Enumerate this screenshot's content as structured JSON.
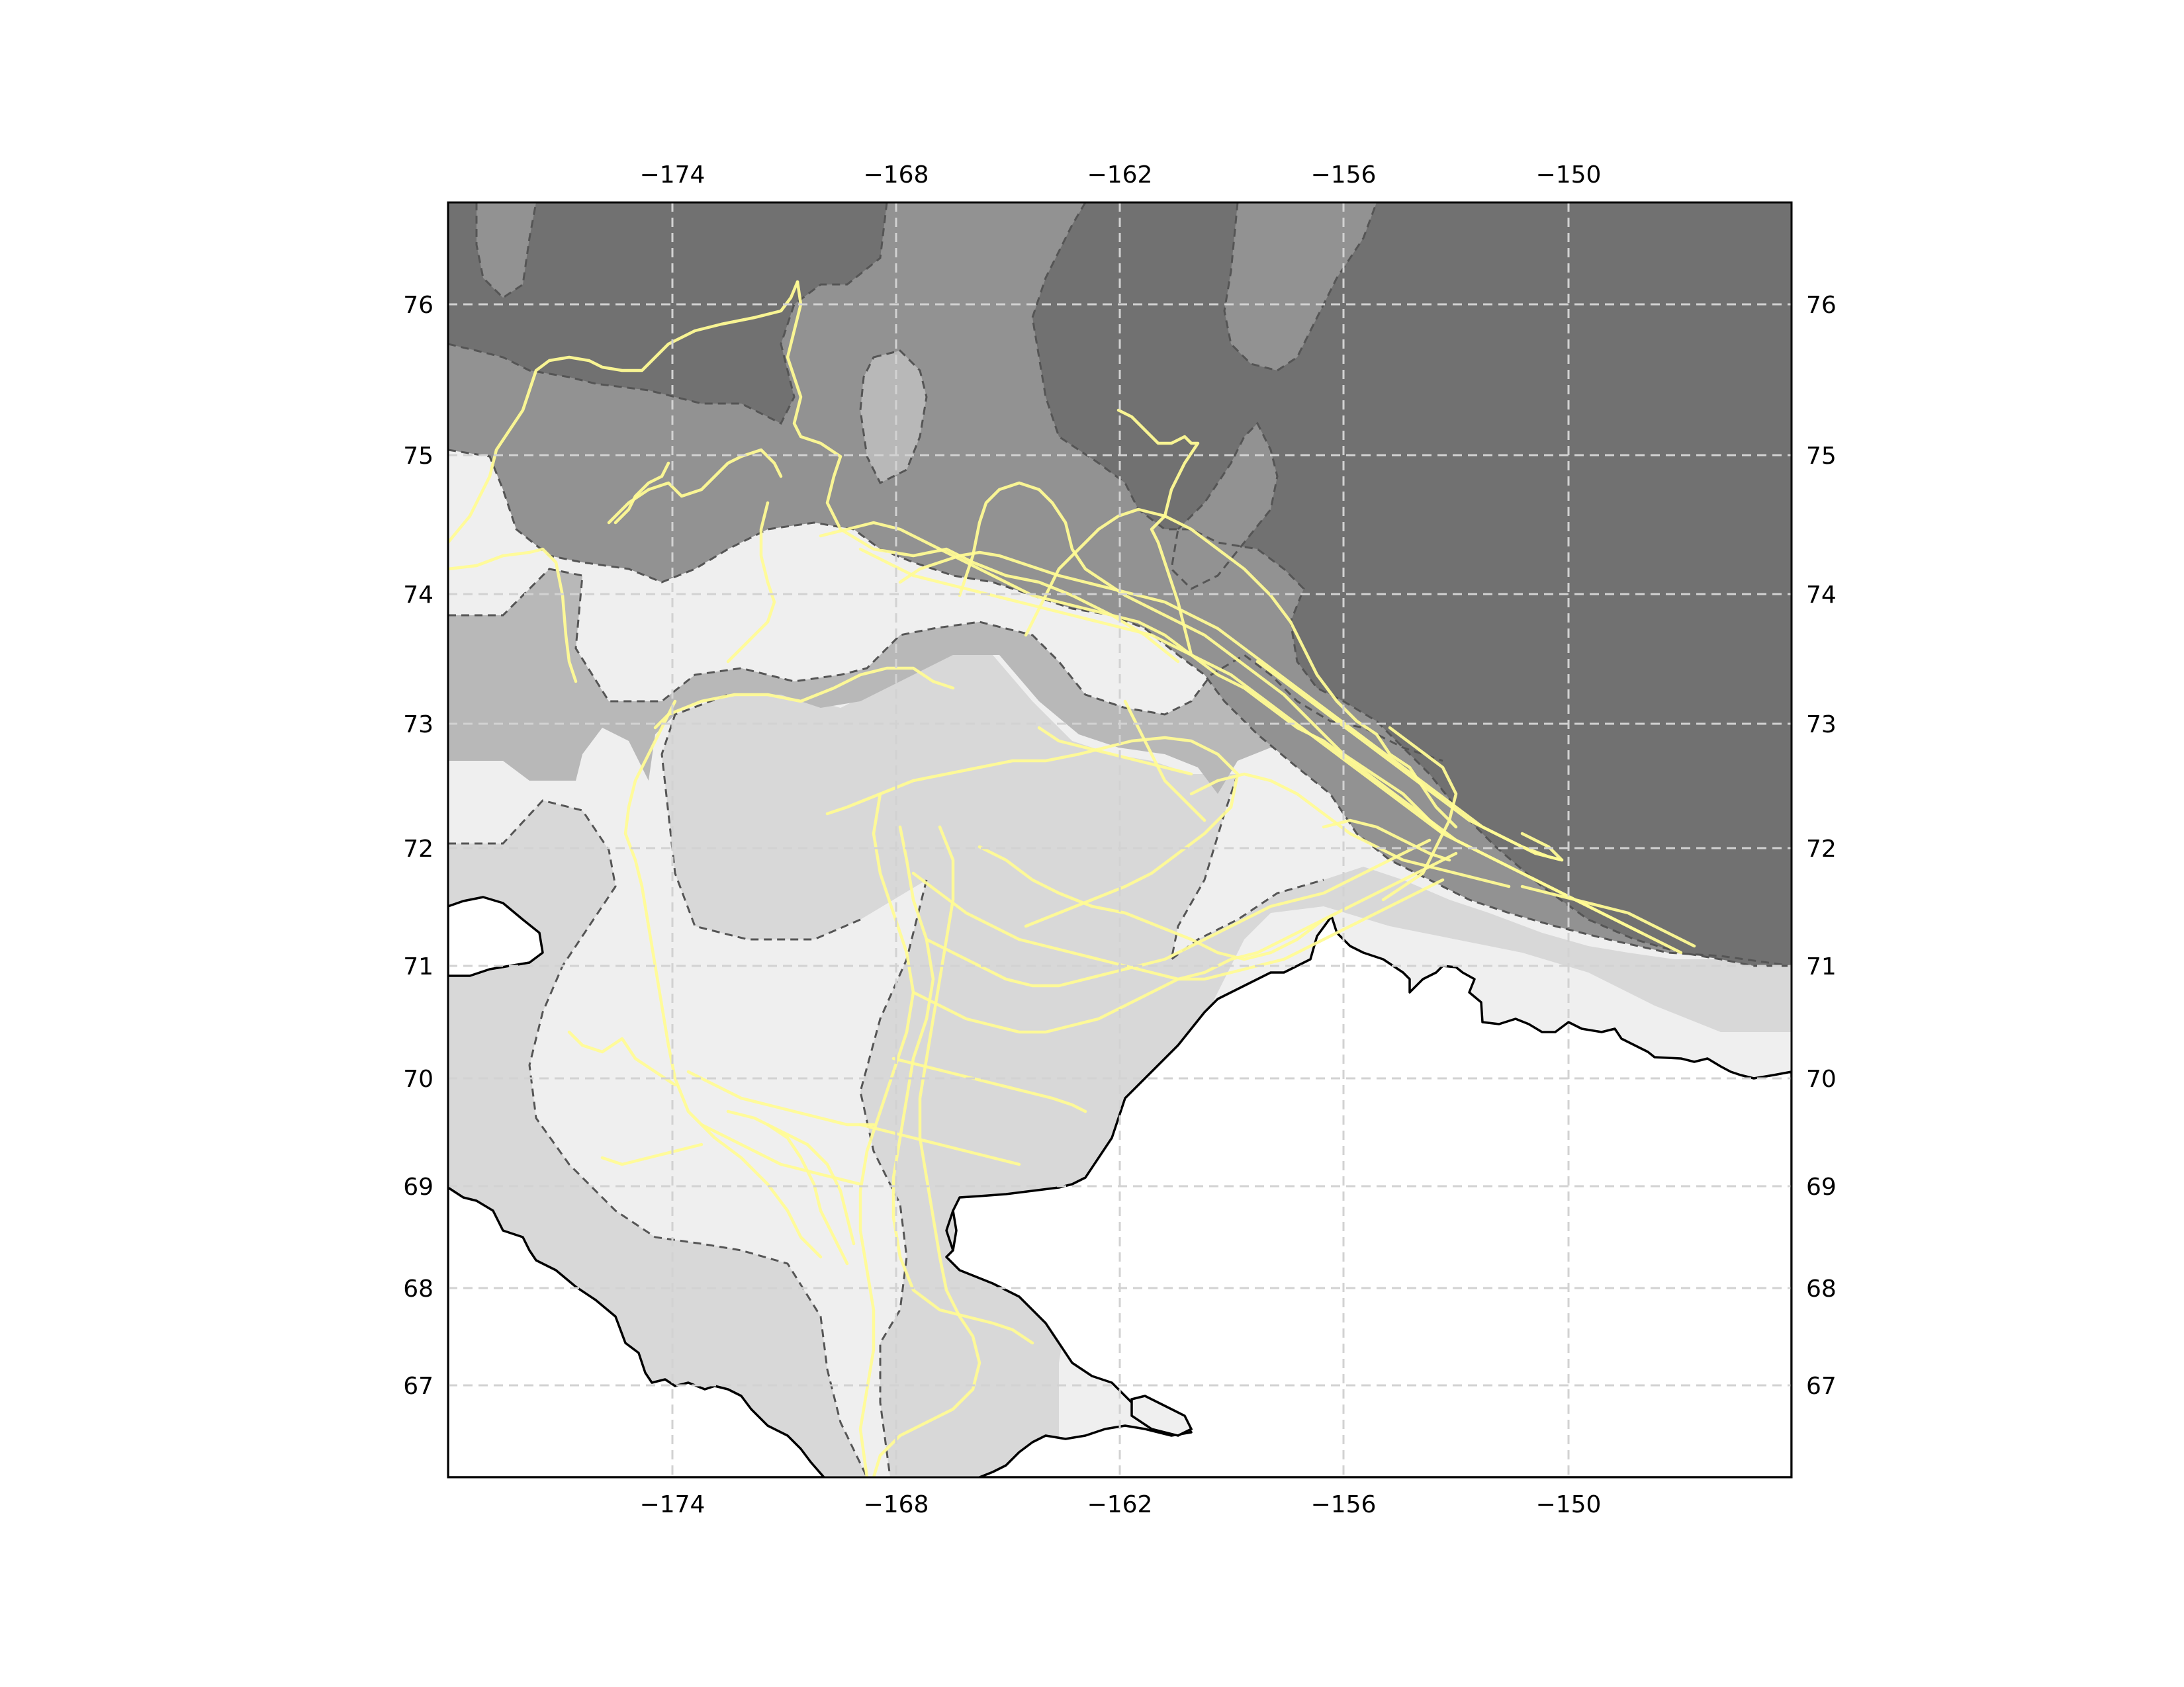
{
  "map": {
    "lon_ticks": [
      "−174",
      "−168",
      "−162",
      "−156",
      "−150"
    ],
    "lat_ticks": [
      "76",
      "75",
      "74",
      "73",
      "72",
      "71",
      "70",
      "69",
      "68",
      "67"
    ]
  },
  "colors": {
    "land": "#ffffff",
    "depth_shallow": "#efefef",
    "depth_shelf": "#d8d8d8",
    "depth_mid": "#b8b8b8",
    "depth_deep": "#929292",
    "depth_basin": "#717171",
    "track": "#fffb95",
    "coastline": "#000000",
    "gridline": "#d2d2d2"
  },
  "layers": [
    "bathymetry-contours",
    "coastline",
    "animal-tracks",
    "graticule"
  ]
}
